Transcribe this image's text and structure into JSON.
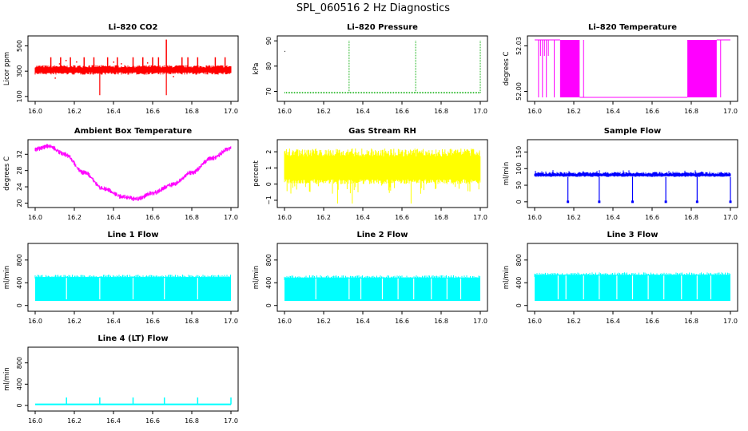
{
  "figure": {
    "title": "SPL_060516  2 Hz Diagnostics"
  },
  "chart_data": [
    {
      "type": "line",
      "title": "Li–820 CO2",
      "ylabel": "Licor ppm",
      "color": "#ff0000",
      "xlim": [
        16.0,
        17.0
      ],
      "ylim": [
        80,
        560
      ],
      "xticks": [
        "16.0",
        "16.2",
        "16.4",
        "16.6",
        "16.8",
        "17.0"
      ],
      "xtick_values": [
        16.0,
        16.2,
        16.4,
        16.6,
        16.8,
        17.0
      ],
      "yticks": [
        "100",
        "300",
        "500"
      ],
      "ytick_values": [
        100,
        300,
        500
      ],
      "pattern": "co2",
      "baseline": 310,
      "spikes_up": [
        16.08,
        16.13,
        16.18,
        16.25,
        16.3,
        16.37,
        16.42,
        16.5,
        16.55,
        16.6,
        16.63,
        16.75,
        16.78,
        16.83,
        16.92,
        16.97
      ],
      "spike_up_value": 410,
      "spikes_down": [
        16.33,
        16.67
      ],
      "spike_down_value": 110,
      "spike_max_x": 16.67,
      "spike_max_value": 550
    },
    {
      "type": "line",
      "title": "Li–820 Pressure",
      "ylabel": "kPa",
      "color": "#00aa00",
      "xlim": [
        16.0,
        17.0
      ],
      "ylim": [
        67,
        91
      ],
      "xticks": [
        "16.0",
        "16.2",
        "16.4",
        "16.6",
        "16.8",
        "17.0"
      ],
      "xtick_values": [
        16.0,
        16.2,
        16.4,
        16.6,
        16.8,
        17.0
      ],
      "yticks": [
        "70",
        "80",
        "90"
      ],
      "ytick_values": [
        70,
        80,
        90
      ],
      "pattern": "pressure",
      "baseline": 69.5,
      "spikes": [
        16.33,
        16.67,
        17.0
      ],
      "spike_value": 90
    },
    {
      "type": "line",
      "title": "Li–820 Temperature",
      "ylabel": "degrees C",
      "color": "#ff00ff",
      "xlim": [
        16.0,
        17.0
      ],
      "ylim": [
        51.995,
        52.035
      ],
      "xticks": [
        "16.0",
        "16.2",
        "16.4",
        "16.6",
        "16.8",
        "17.0"
      ],
      "xtick_values": [
        16.0,
        16.2,
        16.4,
        16.6,
        16.8,
        17.0
      ],
      "yticks": [
        "52.00",
        "52.03"
      ],
      "ytick_values": [
        52.0,
        52.03
      ],
      "pattern": "temperature",
      "high": 52.035,
      "low": 51.995
    },
    {
      "type": "line",
      "title": "Ambient Box Temperature",
      "ylabel": "degrees C",
      "color": "#ff00ff",
      "xlim": [
        16.0,
        17.0
      ],
      "ylim": [
        19.5,
        35
      ],
      "xticks": [
        "16.0",
        "16.2",
        "16.4",
        "16.6",
        "16.8",
        "17.0"
      ],
      "xtick_values": [
        16.0,
        16.2,
        16.4,
        16.6,
        16.8,
        17.0
      ],
      "yticks": [
        "20",
        "24",
        "28",
        "32"
      ],
      "ytick_values": [
        20,
        24,
        28,
        32
      ],
      "pattern": "ambient",
      "noise": 0.6,
      "curve_x": [
        16.0,
        16.07,
        16.15,
        16.25,
        16.35,
        16.45,
        16.52,
        16.6,
        16.7,
        16.8,
        16.9,
        17.0
      ],
      "curve_y": [
        33.2,
        34.0,
        32.0,
        27.5,
        23.5,
        21.5,
        21.0,
        22.5,
        24.5,
        27.5,
        31.0,
        33.5
      ]
    },
    {
      "type": "line",
      "title": "Gas Stream RH",
      "ylabel": "percent",
      "color": "#ffff00",
      "xlim": [
        16.0,
        17.0
      ],
      "ylim": [
        -1.3,
        2.6
      ],
      "xticks": [
        "16.0",
        "16.2",
        "16.4",
        "16.6",
        "16.8",
        "17.0"
      ],
      "xtick_values": [
        16.0,
        16.2,
        16.4,
        16.6,
        16.8,
        17.0
      ],
      "yticks": [
        "−1",
        "0",
        "1",
        "2"
      ],
      "ytick_values": [
        -1,
        0,
        1,
        2
      ],
      "pattern": "rh",
      "band_low": 0.0,
      "band_high": 2.2,
      "min": -1.2
    },
    {
      "type": "line",
      "title": "Sample Flow",
      "ylabel": "ml/min",
      "color": "#0000ff",
      "xlim": [
        16.0,
        17.0
      ],
      "ylim": [
        -10,
        180
      ],
      "xticks": [
        "16.0",
        "16.2",
        "16.4",
        "16.6",
        "16.8",
        "17.0"
      ],
      "xtick_values": [
        16.0,
        16.2,
        16.4,
        16.6,
        16.8,
        17.0
      ],
      "yticks": [
        "0",
        "50",
        "100",
        "150"
      ],
      "ytick_values": [
        0,
        50,
        100,
        150
      ],
      "pattern": "sample",
      "band_low": 75,
      "band_high": 90,
      "dips": [
        16.17,
        16.33,
        16.5,
        16.67,
        16.83,
        17.0
      ],
      "dip_value": 0
    },
    {
      "type": "area",
      "title": "Line 1 Flow",
      "ylabel": "ml/min",
      "color": "#00ffff",
      "xlim": [
        16.0,
        17.0
      ],
      "ylim": [
        -60,
        1050
      ],
      "xticks": [
        "16.0",
        "16.2",
        "16.4",
        "16.6",
        "16.8",
        "17.0"
      ],
      "xtick_values": [
        16.0,
        16.2,
        16.4,
        16.6,
        16.8,
        17.0
      ],
      "yticks": [
        "0",
        "400",
        "800"
      ],
      "ytick_values": [
        0,
        400,
        800
      ],
      "pattern": "band",
      "band_low": 80,
      "band_high": 500,
      "gaps": [
        16.16,
        16.33,
        16.5,
        16.66,
        16.83
      ]
    },
    {
      "type": "area",
      "title": "Line 2 Flow",
      "ylabel": "ml/min",
      "color": "#00ffff",
      "xlim": [
        16.0,
        17.0
      ],
      "ylim": [
        -60,
        1050
      ],
      "xticks": [
        "16.0",
        "16.2",
        "16.4",
        "16.6",
        "16.8",
        "17.0"
      ],
      "xtick_values": [
        16.0,
        16.2,
        16.4,
        16.6,
        16.8,
        17.0
      ],
      "yticks": [
        "0",
        "400",
        "800"
      ],
      "ytick_values": [
        0,
        400,
        800
      ],
      "pattern": "band",
      "band_low": 80,
      "band_high": 490,
      "gaps": [
        16.16,
        16.33,
        16.39,
        16.5,
        16.58,
        16.66,
        16.75,
        16.83,
        16.9
      ]
    },
    {
      "type": "area",
      "title": "Line 3 Flow",
      "ylabel": "ml/min",
      "color": "#00ffff",
      "xlim": [
        16.0,
        17.0
      ],
      "ylim": [
        -60,
        1050
      ],
      "xticks": [
        "16.0",
        "16.2",
        "16.4",
        "16.6",
        "16.8",
        "17.0"
      ],
      "xtick_values": [
        16.0,
        16.2,
        16.4,
        16.6,
        16.8,
        17.0
      ],
      "yticks": [
        "0",
        "400",
        "800"
      ],
      "ytick_values": [
        0,
        400,
        800
      ],
      "pattern": "band",
      "band_low": 80,
      "band_high": 540,
      "gaps": [
        16.12,
        16.16,
        16.25,
        16.33,
        16.42,
        16.5,
        16.58,
        16.66,
        16.75,
        16.83,
        16.9
      ]
    },
    {
      "type": "line",
      "title": "Line 4 (LT) Flow",
      "ylabel": "ml/min",
      "color": "#00ffff",
      "xlim": [
        16.0,
        17.0
      ],
      "ylim": [
        -60,
        1050
      ],
      "xticks": [
        "16.0",
        "16.2",
        "16.4",
        "16.6",
        "16.8",
        "17.0"
      ],
      "xtick_values": [
        16.0,
        16.2,
        16.4,
        16.6,
        16.8,
        17.0
      ],
      "yticks": [
        "0",
        "400",
        "800"
      ],
      "ytick_values": [
        0,
        400,
        800
      ],
      "pattern": "lt",
      "baseline": 20,
      "spikes": [
        16.16,
        16.33,
        16.5,
        16.66,
        16.83,
        17.0
      ],
      "spike_value": 150
    }
  ]
}
